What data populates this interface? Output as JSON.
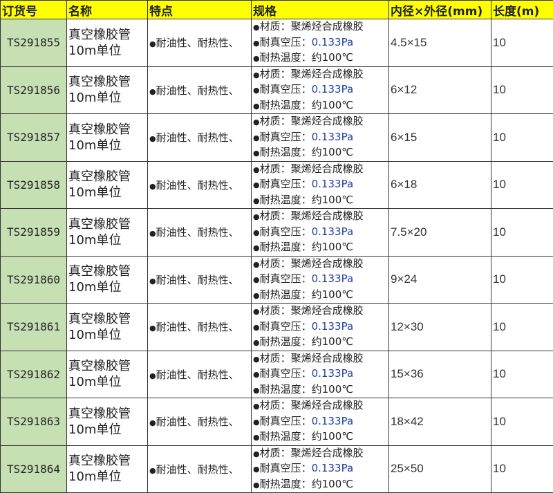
{
  "headers": [
    "订货号",
    "名称",
    "特点",
    "规格",
    "内径×外径(mm)",
    "长度(m)"
  ],
  "bullet": "●",
  "name_line1": "真空橡胶管",
  "name_line2": "10m单位",
  "feature": "耐油性、耐热性、",
  "spec": {
    "material_label": "材质：",
    "material": "聚烯烃合成橡胶",
    "vacuum_label": "耐真空压：",
    "vacuum": "0.133Pa",
    "temp_label": "耐热温度：",
    "temp": "约100℃"
  },
  "rows": [
    {
      "code": "TS291855",
      "size": "4.5×15",
      "length": "10"
    },
    {
      "code": "TS291856",
      "size": "6×12",
      "length": "10"
    },
    {
      "code": "TS291857",
      "size": "6×15",
      "length": "10"
    },
    {
      "code": "TS291858",
      "size": "6×18",
      "length": "10"
    },
    {
      "code": "TS291859",
      "size": "7.5×20",
      "length": "10"
    },
    {
      "code": "TS291860",
      "size": "9×24",
      "length": "10"
    },
    {
      "code": "TS291861",
      "size": "12×30",
      "length": "10"
    },
    {
      "code": "TS291862",
      "size": "15×36",
      "length": "10"
    },
    {
      "code": "TS291863",
      "size": "18×42",
      "length": "10"
    },
    {
      "code": "TS291864",
      "size": "25×50",
      "length": "10"
    }
  ],
  "colors": {
    "header_bg": "#ffff00",
    "code_bg": "#c6e0b4"
  }
}
